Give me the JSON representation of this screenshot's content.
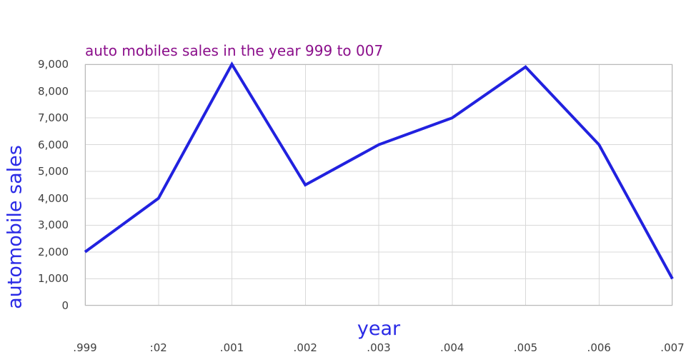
{
  "chart_data": {
    "type": "line",
    "title": "auto mobiles sales in the year 999 to 007",
    "xlabel": "year",
    "ylabel": "automobile sales",
    "categories": [
      ".999",
      ":02",
      ".001",
      ".002",
      ".003",
      ".004",
      ".005",
      ".006",
      ".007"
    ],
    "series": [
      {
        "name": "automobile sales",
        "values": [
          2000,
          4000,
          9000,
          4500,
          6000,
          7000,
          8900,
          6000,
          1000
        ]
      }
    ],
    "ylim": [
      0,
      9000
    ],
    "ytick_step": 1000,
    "ytick_labels": [
      "0",
      "1,000",
      "2,000",
      "3,000",
      "4,000",
      "5,000",
      "6,000",
      "7,000",
      "8,000",
      "9,000"
    ],
    "grid": "on",
    "legend_position": "none",
    "colors": {
      "line": "#2121df",
      "axis_title": "#2a2ae6",
      "chart_title": "#8b0f8b",
      "tick_label": "#404040",
      "gridline": "#d9d9d9",
      "plot_border": "#b9b9b9",
      "background": "#ffffff"
    }
  }
}
